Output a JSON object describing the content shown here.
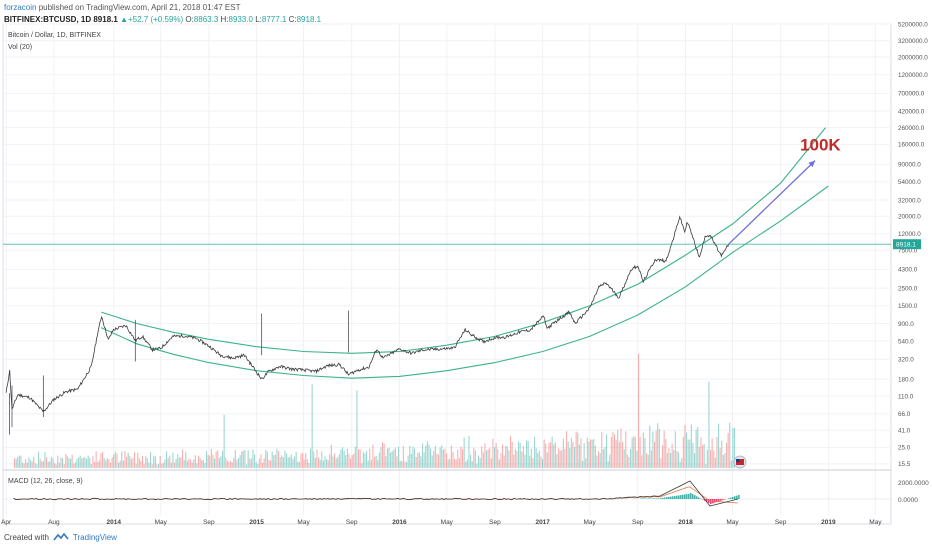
{
  "header": {
    "author": "forzacoin",
    "published": "published on TradingView.com, April 21, 2018 01:47 EST",
    "symbol": "BITFINEX:BTCUSD, 1D",
    "last": "8918.1",
    "change": "+52.7 (+0.59%)",
    "o_label": "O:",
    "o_value": "8863.3",
    "h_label": "H:",
    "h_value": "8933.0",
    "l_label": "L:",
    "l_value": "8777.1",
    "c_label": "C:",
    "c_value": "8918.1"
  },
  "legend": {
    "series": "Bitcoin / Dollar, 1D, BITFINEX",
    "volume": "Vol (20)",
    "macd": "MACD (12, 26, close, 9)"
  },
  "footer": {
    "created_with": "Created with",
    "brand": "TradingView"
  },
  "colors": {
    "channel": "#3cb38a",
    "price": "#3a3a3a",
    "arrow": "#6f72d9",
    "target": "#c62828",
    "up": "#26a69a",
    "down": "#ef5350",
    "price_line": "#26a69a",
    "macd": "#3a3a3a",
    "signal": "#e07a44",
    "hist_pos": "#26a69a",
    "hist_neg": "#e91e63"
  },
  "chart_data": {
    "type": "line",
    "yscale": "log",
    "ylim": [
      13,
      5200000
    ],
    "y_ticks": [
      "5200000.0",
      "3200000.0",
      "2000000.0",
      "1200000.0",
      "700000.0",
      "420000.0",
      "260000.0",
      "160000.0",
      "90000.0",
      "54000.0",
      "32000.0",
      "20000.0",
      "12000.0",
      "7500.0",
      "4300.0",
      "2500.0",
      "1500.0",
      "900.0",
      "540.0",
      "320.0",
      "180.0",
      "110.0",
      "66.0",
      "41.0",
      "25.0",
      "15.5"
    ],
    "x_ticks": [
      "Apr",
      "Aug",
      "2014",
      "May",
      "Sep",
      "2015",
      "May",
      "Sep",
      "2016",
      "May",
      "Sep",
      "2017",
      "May",
      "Sep",
      "2018",
      "May",
      "Sep",
      "2019",
      "May"
    ],
    "x_tick_dates": [
      "2013-04-01",
      "2013-08-01",
      "2014-01-01",
      "2014-05-01",
      "2014-09-01",
      "2015-01-01",
      "2015-05-01",
      "2015-09-01",
      "2016-01-01",
      "2016-05-01",
      "2016-09-01",
      "2017-01-01",
      "2017-05-01",
      "2017-09-01",
      "2018-01-01",
      "2018-05-01",
      "2018-09-01",
      "2019-01-01",
      "2019-05-01"
    ],
    "last_price": 8918.1,
    "last_price_label": "8918.1",
    "target_label": "100K",
    "series": [
      {
        "values": [
          [
            "2013-04-01",
            120
          ],
          [
            "2013-04-10",
            230
          ],
          [
            "2013-04-16",
            75
          ],
          [
            "2013-05-01",
            115
          ],
          [
            "2013-06-01",
            105
          ],
          [
            "2013-07-05",
            70
          ],
          [
            "2013-08-01",
            100
          ],
          [
            "2013-09-01",
            125
          ],
          [
            "2013-10-01",
            135
          ],
          [
            "2013-11-05",
            260
          ],
          [
            "2013-11-20",
            650
          ],
          [
            "2013-12-01",
            1120
          ],
          [
            "2013-12-18",
            560
          ],
          [
            "2013-12-31",
            750
          ],
          [
            "2014-02-01",
            850
          ],
          [
            "2014-02-25",
            550
          ],
          [
            "2014-03-15",
            620
          ],
          [
            "2014-04-10",
            420
          ],
          [
            "2014-05-01",
            440
          ],
          [
            "2014-06-01",
            620
          ],
          [
            "2014-07-01",
            630
          ],
          [
            "2014-08-01",
            580
          ],
          [
            "2014-09-01",
            470
          ],
          [
            "2014-10-01",
            360
          ],
          [
            "2014-11-01",
            330
          ],
          [
            "2014-12-01",
            360
          ],
          [
            "2015-01-14",
            180
          ],
          [
            "2015-02-01",
            225
          ],
          [
            "2015-03-01",
            260
          ],
          [
            "2015-04-01",
            240
          ],
          [
            "2015-05-01",
            235
          ],
          [
            "2015-06-01",
            225
          ],
          [
            "2015-07-01",
            265
          ],
          [
            "2015-08-01",
            275
          ],
          [
            "2015-08-24",
            205
          ],
          [
            "2015-09-15",
            232
          ],
          [
            "2015-10-15",
            255
          ],
          [
            "2015-11-04",
            430
          ],
          [
            "2015-11-20",
            330
          ],
          [
            "2016-01-01",
            430
          ],
          [
            "2016-02-01",
            380
          ],
          [
            "2016-03-01",
            420
          ],
          [
            "2016-04-15",
            430
          ],
          [
            "2016-05-20",
            445
          ],
          [
            "2016-06-17",
            750
          ],
          [
            "2016-07-01",
            660
          ],
          [
            "2016-08-02",
            530
          ],
          [
            "2016-09-01",
            600
          ],
          [
            "2016-10-01",
            610
          ],
          [
            "2016-11-01",
            700
          ],
          [
            "2016-12-01",
            750
          ],
          [
            "2017-01-04",
            1120
          ],
          [
            "2017-01-12",
            780
          ],
          [
            "2017-02-15",
            1050
          ],
          [
            "2017-03-10",
            1250
          ],
          [
            "2017-03-25",
            900
          ],
          [
            "2017-05-01",
            1400
          ],
          [
            "2017-05-25",
            2600
          ],
          [
            "2017-06-12",
            2900
          ],
          [
            "2017-07-15",
            1900
          ],
          [
            "2017-08-15",
            4300
          ],
          [
            "2017-09-01",
            4800
          ],
          [
            "2017-09-15",
            3000
          ],
          [
            "2017-10-15",
            5700
          ],
          [
            "2017-11-12",
            5500
          ],
          [
            "2017-12-01",
            10500
          ],
          [
            "2017-12-17",
            19800
          ],
          [
            "2017-12-30",
            12800
          ],
          [
            "2018-01-06",
            17200
          ],
          [
            "2018-02-06",
            6000
          ],
          [
            "2018-02-20",
            11400
          ],
          [
            "2018-03-05",
            11500
          ],
          [
            "2018-04-01",
            6500
          ],
          [
            "2018-04-06",
            6600
          ],
          [
            "2018-04-21",
            8918
          ]
        ]
      }
    ],
    "channel_upper": [
      [
        "2013-11-30",
        1250
      ],
      [
        "2014-03-01",
        900
      ],
      [
        "2014-06-01",
        700
      ],
      [
        "2014-09-01",
        570
      ],
      [
        "2015-01-01",
        460
      ],
      [
        "2015-05-01",
        400
      ],
      [
        "2015-09-01",
        380
      ],
      [
        "2016-01-01",
        400
      ],
      [
        "2016-05-01",
        480
      ],
      [
        "2016-09-01",
        620
      ],
      [
        "2017-01-01",
        920
      ],
      [
        "2017-05-01",
        1500
      ],
      [
        "2017-09-01",
        2800
      ],
      [
        "2018-01-01",
        6500
      ],
      [
        "2018-05-01",
        16000
      ],
      [
        "2018-09-01",
        52000
      ],
      [
        "2018-12-25",
        260000
      ]
    ],
    "channel_lower": [
      [
        "2013-11-30",
        800
      ],
      [
        "2014-03-01",
        500
      ],
      [
        "2014-06-01",
        370
      ],
      [
        "2014-09-01",
        290
      ],
      [
        "2015-01-01",
        230
      ],
      [
        "2015-05-01",
        200
      ],
      [
        "2015-09-01",
        185
      ],
      [
        "2016-01-01",
        195
      ],
      [
        "2016-05-01",
        230
      ],
      [
        "2016-09-01",
        290
      ],
      [
        "2017-01-01",
        400
      ],
      [
        "2017-05-01",
        620
      ],
      [
        "2017-09-01",
        1150
      ],
      [
        "2018-01-01",
        2600
      ],
      [
        "2018-05-01",
        7000
      ],
      [
        "2018-09-01",
        17500
      ],
      [
        "2019-01-01",
        48000
      ]
    ],
    "projection": [
      [
        "2018-04-21",
        8918
      ],
      [
        "2018-11-28",
        100000
      ]
    ]
  }
}
